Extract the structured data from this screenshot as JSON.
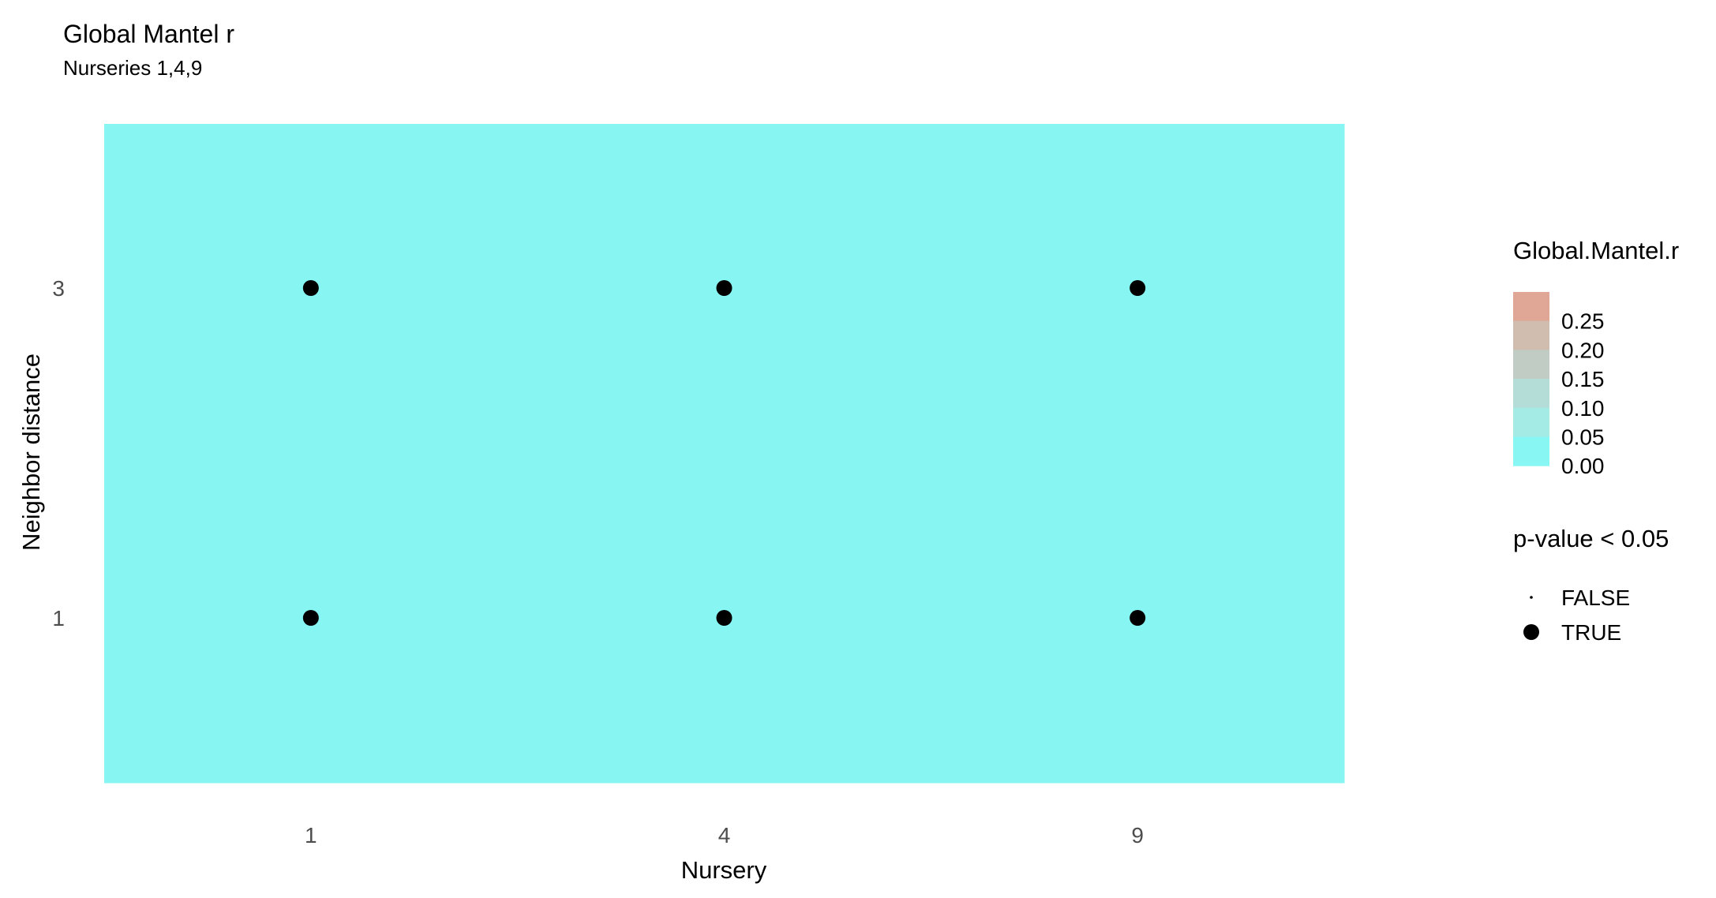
{
  "chart_data": {
    "type": "heatmap",
    "title": "Global Mantel r",
    "subtitle": "Nurseries 1,4,9",
    "xlabel": "Nursery",
    "ylabel": "Neighbor distance",
    "x_categories": [
      "1",
      "4",
      "9"
    ],
    "y_categories": [
      "1",
      "3"
    ],
    "cells": [
      {
        "x": "1",
        "y": "1",
        "value": 0.0,
        "significant": true
      },
      {
        "x": "4",
        "y": "1",
        "value": 0.0,
        "significant": true
      },
      {
        "x": "9",
        "y": "1",
        "value": 0.0,
        "significant": true
      },
      {
        "x": "1",
        "y": "3",
        "value": 0.0,
        "significant": true
      },
      {
        "x": "4",
        "y": "3",
        "value": 0.0,
        "significant": true
      },
      {
        "x": "9",
        "y": "3",
        "value": 0.0,
        "significant": true
      }
    ],
    "fill_legend": {
      "title": "Global.Mantel.r",
      "breaks": [
        "0.25",
        "0.20",
        "0.15",
        "0.10",
        "0.05",
        "0.00"
      ],
      "colors": [
        "#E0A696",
        "#D0BDB0",
        "#C0CCC4",
        "#B3DDD6",
        "#A4EBE6",
        "#88F6F2"
      ]
    },
    "size_legend": {
      "title": "p-value < 0.05",
      "entries": [
        {
          "label": "FALSE",
          "size": "small"
        },
        {
          "label": "TRUE",
          "size": "large"
        }
      ]
    },
    "tile_color": "#87F6F2",
    "point_color": "#000000",
    "grid": false,
    "legend_position": "right"
  }
}
